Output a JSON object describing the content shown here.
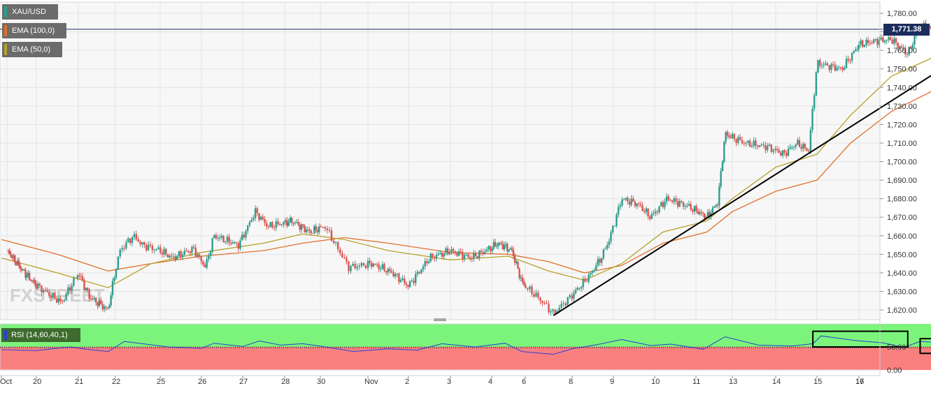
{
  "legend": [
    {
      "label": "XAU/USD",
      "color": "#2e9c8c"
    },
    {
      "label": "EMA (100,0)",
      "color": "#e0702a"
    },
    {
      "label": "EMA (50,0)",
      "color": "#b5a227"
    }
  ],
  "price_badge": "1,771.38",
  "rsi": {
    "label": "RSI (14,60,40,1)",
    "axis_ticks": [
      "50.00",
      "0.00"
    ],
    "line_color": "#2a3fd3",
    "upper_zone_color": "#7cf47c",
    "lower_zone_color": "#fa8080"
  },
  "watermark": "FXSTREET",
  "colors": {
    "up_candle": "#2e9c8c",
    "down_candle": "#d9534f",
    "ema100": "#e0702a",
    "ema50": "#b5a227",
    "trendline": "#000000",
    "price_line": "#1b2d5c"
  },
  "chart_data": {
    "type": "line",
    "instrument": "XAU/USD",
    "ylim": [
      1615,
      1786
    ],
    "y_ticks": [
      "1,620.00",
      "1,630.00",
      "1,640.00",
      "1,650.00",
      "1,660.00",
      "1,670.00",
      "1,680.00",
      "1,690.00",
      "1,700.00",
      "1,710.00",
      "1,720.00",
      "1,730.00",
      "1,740.00",
      "1,750.00",
      "1,760.00",
      "1,770.00",
      "1,780.00"
    ],
    "x_ticks": [
      "Oct",
      "20",
      "21",
      "22",
      "25",
      "26",
      "27",
      "28",
      "30",
      "Nov",
      "2",
      "3",
      "4",
      "6",
      "8",
      "9",
      "10",
      "11",
      "13",
      "14",
      "15",
      "16",
      "17"
    ],
    "last_price": 1771.38,
    "price_path": [
      {
        "x": 0,
        "y": 1652
      },
      {
        "x": 0.6,
        "y": 1640
      },
      {
        "x": 1.2,
        "y": 1630
      },
      {
        "x": 1.6,
        "y": 1624
      },
      {
        "x": 2.0,
        "y": 1640
      },
      {
        "x": 2.3,
        "y": 1627
      },
      {
        "x": 2.8,
        "y": 1620
      },
      {
        "x": 3.1,
        "y": 1652
      },
      {
        "x": 3.4,
        "y": 1660
      },
      {
        "x": 3.6,
        "y": 1655
      },
      {
        "x": 4.0,
        "y": 1652
      },
      {
        "x": 4.3,
        "y": 1648
      },
      {
        "x": 4.8,
        "y": 1653
      },
      {
        "x": 5.1,
        "y": 1643
      },
      {
        "x": 5.3,
        "y": 1660
      },
      {
        "x": 5.9,
        "y": 1655
      },
      {
        "x": 6.3,
        "y": 1673
      },
      {
        "x": 6.6,
        "y": 1665
      },
      {
        "x": 7.2,
        "y": 1668
      },
      {
        "x": 7.7,
        "y": 1662
      },
      {
        "x": 8.1,
        "y": 1665
      },
      {
        "x": 8.3,
        "y": 1656
      },
      {
        "x": 8.6,
        "y": 1643
      },
      {
        "x": 9.1,
        "y": 1645
      },
      {
        "x": 9.6,
        "y": 1640
      },
      {
        "x": 10.0,
        "y": 1633
      },
      {
        "x": 10.5,
        "y": 1648
      },
      {
        "x": 11.0,
        "y": 1652
      },
      {
        "x": 11.5,
        "y": 1648
      },
      {
        "x": 12.2,
        "y": 1656
      },
      {
        "x": 12.6,
        "y": 1652
      },
      {
        "x": 12.9,
        "y": 1635
      },
      {
        "x": 13.3,
        "y": 1626
      },
      {
        "x": 13.6,
        "y": 1618
      },
      {
        "x": 14.0,
        "y": 1628
      },
      {
        "x": 14.4,
        "y": 1638
      },
      {
        "x": 14.7,
        "y": 1648
      },
      {
        "x": 14.9,
        "y": 1658
      },
      {
        "x": 15.2,
        "y": 1680
      },
      {
        "x": 15.6,
        "y": 1677
      },
      {
        "x": 15.9,
        "y": 1670
      },
      {
        "x": 16.3,
        "y": 1680
      },
      {
        "x": 16.8,
        "y": 1676
      },
      {
        "x": 17.3,
        "y": 1670
      },
      {
        "x": 17.6,
        "y": 1678
      },
      {
        "x": 17.8,
        "y": 1715
      },
      {
        "x": 18.3,
        "y": 1710
      },
      {
        "x": 18.8,
        "y": 1708
      },
      {
        "x": 19.2,
        "y": 1704
      },
      {
        "x": 19.5,
        "y": 1710
      },
      {
        "x": 19.8,
        "y": 1706
      },
      {
        "x": 20.0,
        "y": 1753
      },
      {
        "x": 20.6,
        "y": 1750
      },
      {
        "x": 21.0,
        "y": 1763
      },
      {
        "x": 21.4,
        "y": 1765
      },
      {
        "x": 21.8,
        "y": 1766
      },
      {
        "x": 22.2,
        "y": 1758
      },
      {
        "x": 22.5,
        "y": 1774
      },
      {
        "x": 22.9,
        "y": 1770
      },
      {
        "x": 23.2,
        "y": 1778
      },
      {
        "x": 23.5,
        "y": 1773
      },
      {
        "x": 23.9,
        "y": 1780
      },
      {
        "x": 24.2,
        "y": 1774
      },
      {
        "x": 24.4,
        "y": 1771.38
      }
    ],
    "ema50_path": [
      {
        "x": 0,
        "y": 1648
      },
      {
        "x": 1.5,
        "y": 1640
      },
      {
        "x": 2.8,
        "y": 1632
      },
      {
        "x": 3.8,
        "y": 1645
      },
      {
        "x": 5.0,
        "y": 1651
      },
      {
        "x": 6.5,
        "y": 1656
      },
      {
        "x": 7.5,
        "y": 1661
      },
      {
        "x": 8.5,
        "y": 1658
      },
      {
        "x": 9.5,
        "y": 1652
      },
      {
        "x": 11.0,
        "y": 1647
      },
      {
        "x": 12.5,
        "y": 1649
      },
      {
        "x": 13.5,
        "y": 1641
      },
      {
        "x": 14.3,
        "y": 1636
      },
      {
        "x": 15.2,
        "y": 1645
      },
      {
        "x": 16.2,
        "y": 1662
      },
      {
        "x": 17.3,
        "y": 1668
      },
      {
        "x": 18.0,
        "y": 1680
      },
      {
        "x": 19.0,
        "y": 1697
      },
      {
        "x": 20.0,
        "y": 1704
      },
      {
        "x": 20.8,
        "y": 1725
      },
      {
        "x": 21.8,
        "y": 1746
      },
      {
        "x": 22.7,
        "y": 1755
      },
      {
        "x": 23.5,
        "y": 1765
      },
      {
        "x": 24.4,
        "y": 1770
      }
    ],
    "ema100_path": [
      {
        "x": 0,
        "y": 1658
      },
      {
        "x": 1.5,
        "y": 1650
      },
      {
        "x": 2.8,
        "y": 1641
      },
      {
        "x": 3.8,
        "y": 1645
      },
      {
        "x": 5.0,
        "y": 1649
      },
      {
        "x": 6.5,
        "y": 1652
      },
      {
        "x": 7.5,
        "y": 1656
      },
      {
        "x": 8.5,
        "y": 1659
      },
      {
        "x": 9.5,
        "y": 1656
      },
      {
        "x": 11.0,
        "y": 1651
      },
      {
        "x": 12.5,
        "y": 1650
      },
      {
        "x": 13.5,
        "y": 1646
      },
      {
        "x": 14.3,
        "y": 1640
      },
      {
        "x": 15.2,
        "y": 1644
      },
      {
        "x": 16.2,
        "y": 1656
      },
      {
        "x": 17.3,
        "y": 1662
      },
      {
        "x": 18.0,
        "y": 1673
      },
      {
        "x": 19.0,
        "y": 1684
      },
      {
        "x": 20.0,
        "y": 1690
      },
      {
        "x": 20.8,
        "y": 1710
      },
      {
        "x": 21.8,
        "y": 1727
      },
      {
        "x": 22.7,
        "y": 1737
      },
      {
        "x": 23.5,
        "y": 1747
      },
      {
        "x": 24.4,
        "y": 1756
      }
    ],
    "trendline": [
      {
        "x": 13.6,
        "y": 1617
      },
      {
        "x": 25.5,
        "y": 1785
      }
    ],
    "rsi_ylim": [
      0,
      100
    ],
    "rsi_thresholds": {
      "upper": 60,
      "lower": 40
    },
    "rsi_path": [
      {
        "x": 0,
        "y": 44
      },
      {
        "x": 1.0,
        "y": 42
      },
      {
        "x": 1.8,
        "y": 50
      },
      {
        "x": 2.2,
        "y": 45
      },
      {
        "x": 2.8,
        "y": 40
      },
      {
        "x": 3.2,
        "y": 62
      },
      {
        "x": 3.6,
        "y": 57
      },
      {
        "x": 4.2,
        "y": 50
      },
      {
        "x": 5.0,
        "y": 47
      },
      {
        "x": 5.3,
        "y": 58
      },
      {
        "x": 6.0,
        "y": 51
      },
      {
        "x": 6.4,
        "y": 63
      },
      {
        "x": 6.9,
        "y": 54
      },
      {
        "x": 7.5,
        "y": 57
      },
      {
        "x": 8.0,
        "y": 52
      },
      {
        "x": 8.7,
        "y": 40
      },
      {
        "x": 9.5,
        "y": 46
      },
      {
        "x": 10.2,
        "y": 43
      },
      {
        "x": 10.8,
        "y": 57
      },
      {
        "x": 11.6,
        "y": 50
      },
      {
        "x": 12.4,
        "y": 58
      },
      {
        "x": 12.9,
        "y": 40
      },
      {
        "x": 13.6,
        "y": 34
      },
      {
        "x": 14.0,
        "y": 46
      },
      {
        "x": 14.6,
        "y": 55
      },
      {
        "x": 15.2,
        "y": 66
      },
      {
        "x": 15.9,
        "y": 53
      },
      {
        "x": 16.4,
        "y": 56
      },
      {
        "x": 17.2,
        "y": 45
      },
      {
        "x": 17.8,
        "y": 72
      },
      {
        "x": 18.6,
        "y": 54
      },
      {
        "x": 19.4,
        "y": 52
      },
      {
        "x": 19.9,
        "y": 57
      },
      {
        "x": 20.1,
        "y": 74
      },
      {
        "x": 20.9,
        "y": 64
      },
      {
        "x": 21.6,
        "y": 59
      },
      {
        "x": 22.1,
        "y": 49
      },
      {
        "x": 22.5,
        "y": 62
      },
      {
        "x": 23.2,
        "y": 58
      },
      {
        "x": 23.6,
        "y": 64
      },
      {
        "x": 24.0,
        "y": 55
      },
      {
        "x": 24.4,
        "y": 50
      }
    ],
    "rsi_highlight_boxes": [
      {
        "x0": 19.9,
        "x1": 22.2,
        "y0": 50,
        "y1": 84
      },
      {
        "x0": 22.5,
        "x1": 24.5,
        "y0": 36,
        "y1": 68
      }
    ]
  }
}
